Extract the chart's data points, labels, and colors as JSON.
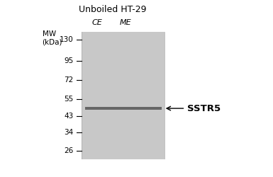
{
  "title": "Unboiled HT-29",
  "lane_labels": [
    "CE",
    "ME"
  ],
  "mw_label": "MW\n(kDa)",
  "mw_ticks_kda": [
    130,
    95,
    72,
    55,
    43,
    34,
    26
  ],
  "gel_color": "#c8c8c8",
  "gel_bg_color": "#d8d8d8",
  "band_kda": 48,
  "band_color": "#666666",
  "annotation_label": "SSTR5",
  "background_color": "#ffffff",
  "title_fontsize": 9,
  "tick_fontsize": 7.5,
  "mw_label_fontsize": 7.5,
  "lane_fontsize": 8,
  "annotation_fontsize": 9.5
}
